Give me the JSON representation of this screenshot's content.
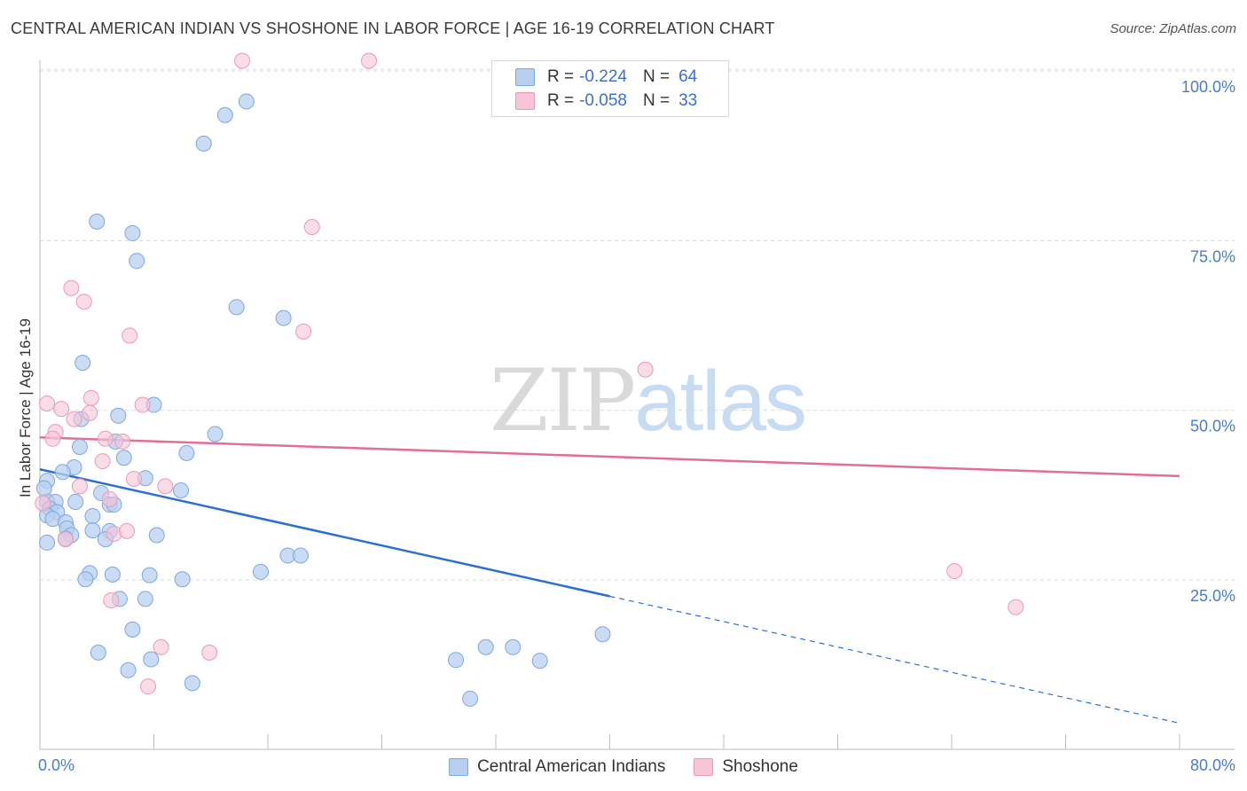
{
  "title": "CENTRAL AMERICAN INDIAN VS SHOSHONE IN LABOR FORCE | AGE 16-19 CORRELATION CHART",
  "source": "Source: ZipAtlas.com",
  "watermark": {
    "zip": "ZIP",
    "atlas": "atlas"
  },
  "legend": {
    "rows": [
      {
        "r_label": "R =",
        "r_value": "-0.224",
        "n_label": "N =",
        "n_value": "64"
      },
      {
        "r_label": "R =",
        "r_value": "-0.058",
        "n_label": "N =",
        "n_value": "33"
      }
    ]
  },
  "bottom_legend": [
    "Central American Indians",
    "Shoshone"
  ],
  "colors": {
    "blue_fill": "#b8d0f0",
    "blue_edge": "#7ea6e0",
    "blue_line": "#2a6fd1",
    "pink_fill": "#f7c5d5",
    "pink_edge": "#ea9ab5",
    "pink_line": "#e06e97",
    "grid": "#d9d9d9",
    "tick_text": "#4a7cc7"
  },
  "chart_data": {
    "type": "scatter",
    "title": "CENTRAL AMERICAN INDIAN VS SHOSHONE IN LABOR FORCE | AGE 16-19 CORRELATION CHART",
    "xlabel": "",
    "ylabel": "In Labor Force | Age 16-19",
    "xlim": [
      0,
      80
    ],
    "ylim": [
      0,
      104
    ],
    "x_ticks": [
      0,
      80
    ],
    "x_tick_labels": [
      "0.0%",
      "80.0%"
    ],
    "y_ticks": [
      25,
      50,
      75,
      100
    ],
    "y_tick_labels": [
      "25.0%",
      "50.0%",
      "75.0%",
      "100.0%"
    ],
    "series": [
      {
        "name": "Central American Indians",
        "points": [
          [
            14.5,
            95.5
          ],
          [
            13.0,
            93.5
          ],
          [
            11.5,
            89.3
          ],
          [
            4.0,
            77.8
          ],
          [
            6.5,
            76.1
          ],
          [
            6.8,
            72.0
          ],
          [
            13.8,
            65.2
          ],
          [
            17.1,
            63.6
          ],
          [
            3.0,
            57.0
          ],
          [
            8.0,
            50.8
          ],
          [
            5.5,
            49.2
          ],
          [
            2.9,
            48.7
          ],
          [
            12.3,
            46.5
          ],
          [
            5.3,
            45.4
          ],
          [
            2.8,
            44.6
          ],
          [
            10.3,
            43.7
          ],
          [
            5.9,
            43.0
          ],
          [
            2.4,
            41.6
          ],
          [
            1.6,
            40.9
          ],
          [
            0.5,
            39.6
          ],
          [
            7.4,
            40.0
          ],
          [
            9.9,
            38.2
          ],
          [
            4.3,
            37.8
          ],
          [
            0.5,
            36.6
          ],
          [
            1.1,
            36.5
          ],
          [
            2.5,
            36.5
          ],
          [
            4.9,
            36.1
          ],
          [
            5.2,
            36.1
          ],
          [
            0.7,
            35.5
          ],
          [
            1.2,
            35.0
          ],
          [
            3.7,
            34.4
          ],
          [
            0.5,
            34.5
          ],
          [
            0.9,
            34.0
          ],
          [
            1.8,
            33.5
          ],
          [
            1.9,
            32.6
          ],
          [
            3.7,
            32.3
          ],
          [
            4.9,
            32.2
          ],
          [
            2.2,
            31.6
          ],
          [
            8.2,
            31.6
          ],
          [
            1.8,
            31.1
          ],
          [
            4.6,
            31.0
          ],
          [
            0.5,
            30.5
          ],
          [
            17.4,
            28.6
          ],
          [
            18.3,
            28.6
          ],
          [
            15.5,
            26.2
          ],
          [
            3.5,
            26.0
          ],
          [
            5.1,
            25.8
          ],
          [
            7.7,
            25.7
          ],
          [
            3.2,
            25.1
          ],
          [
            10.0,
            25.1
          ],
          [
            7.4,
            22.2
          ],
          [
            5.6,
            22.2
          ],
          [
            6.5,
            17.7
          ],
          [
            39.5,
            17.0
          ],
          [
            4.1,
            14.3
          ],
          [
            7.8,
            13.3
          ],
          [
            29.2,
            13.2
          ],
          [
            31.3,
            15.1
          ],
          [
            33.2,
            15.1
          ],
          [
            35.1,
            13.1
          ],
          [
            6.2,
            11.7
          ],
          [
            10.7,
            9.8
          ],
          [
            30.2,
            7.5
          ],
          [
            0.3,
            38.5
          ]
        ]
      },
      {
        "name": "Shoshone",
        "points": [
          [
            14.2,
            101.5
          ],
          [
            23.1,
            101.5
          ],
          [
            19.1,
            77.0
          ],
          [
            2.2,
            68.0
          ],
          [
            3.1,
            66.0
          ],
          [
            6.3,
            61.0
          ],
          [
            18.5,
            61.6
          ],
          [
            42.5,
            56.0
          ],
          [
            0.5,
            51.0
          ],
          [
            3.6,
            51.8
          ],
          [
            7.2,
            50.8
          ],
          [
            1.5,
            50.2
          ],
          [
            2.4,
            48.7
          ],
          [
            3.5,
            49.6
          ],
          [
            1.1,
            46.8
          ],
          [
            0.9,
            45.8
          ],
          [
            4.6,
            45.8
          ],
          [
            5.8,
            45.4
          ],
          [
            4.4,
            42.5
          ],
          [
            6.6,
            39.9
          ],
          [
            8.8,
            38.8
          ],
          [
            2.8,
            38.8
          ],
          [
            4.9,
            36.9
          ],
          [
            5.2,
            31.8
          ],
          [
            6.1,
            32.2
          ],
          [
            1.8,
            31.0
          ],
          [
            64.2,
            26.3
          ],
          [
            68.5,
            21.0
          ],
          [
            5.0,
            22.0
          ],
          [
            8.5,
            15.1
          ],
          [
            11.9,
            14.3
          ],
          [
            7.6,
            9.3
          ],
          [
            0.2,
            36.3
          ]
        ]
      }
    ],
    "trendlines": [
      {
        "series": "Central American Indians",
        "x0": 0,
        "y0": 41.3,
        "x1": 40.0,
        "y1": 22.6,
        "dashed_to_x": 80,
        "dashed_to_y": 3.9
      },
      {
        "series": "Shoshone",
        "x0": 0,
        "y0": 46.0,
        "x1": 80,
        "y1": 40.3
      }
    ]
  }
}
